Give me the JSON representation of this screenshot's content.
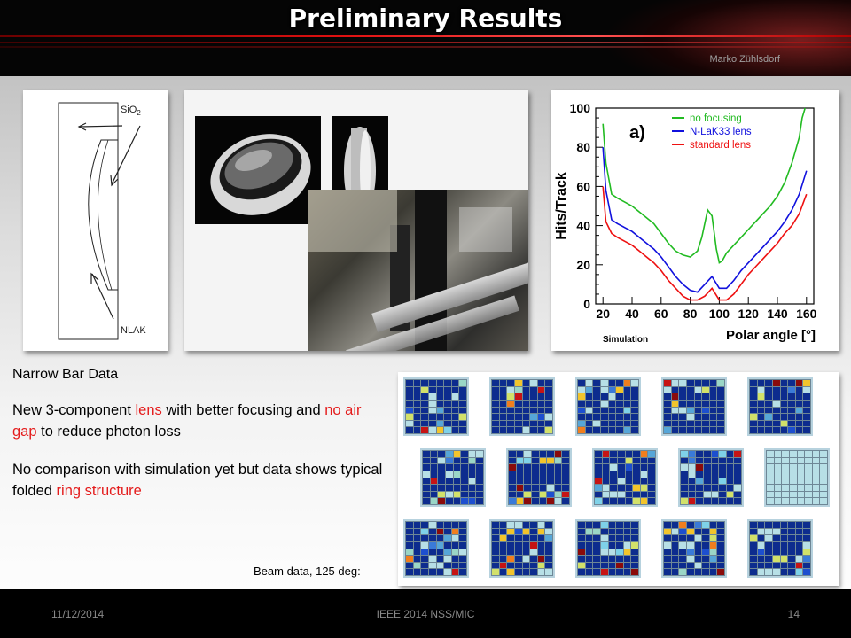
{
  "header": {
    "title": "Preliminary Results",
    "author": "Marko Zühlsdorf"
  },
  "lens_sketch": {
    "label_top": "SiO",
    "label_top_sub": "2",
    "label_bottom": "NLAK"
  },
  "text": {
    "heading": "Narrow Bar Data",
    "p1_before": "New 3-component ",
    "p1_lens": "lens",
    "p1_middle": " with better focusing and ",
    "p1_airgap": "no air gap",
    "p1_after": " to reduce photon loss",
    "p2_before": "No comparison with simulation yet but data shows typical folded ",
    "p2_ring": "ring structure"
  },
  "grid_caption": "Beam data, 125 deg:",
  "footer": {
    "date": "11/12/2014",
    "conference": "IEEE 2014 NSS/MIC",
    "page": "14"
  },
  "colors": {
    "accent_red": "#e41c1c",
    "no_focusing": "#22bb22",
    "nlak_lens": "#1111dd",
    "standard_lens": "#ee1111"
  },
  "chart_data": {
    "type": "line",
    "panel_label": "a)",
    "xlabel": "Polar angle [°]",
    "ylabel": "Hits/Track",
    "corner_label": "Simulation",
    "xlim": [
      15,
      165
    ],
    "ylim": [
      0,
      100
    ],
    "xticks": [
      20,
      40,
      60,
      80,
      100,
      120,
      140,
      160
    ],
    "yticks": [
      0,
      20,
      40,
      60,
      80,
      100
    ],
    "series": [
      {
        "name": "no focusing",
        "color": "#22bb22",
        "x": [
          20,
          22,
          26,
          30,
          35,
          40,
          45,
          50,
          55,
          60,
          65,
          70,
          75,
          80,
          85,
          88,
          92,
          95,
          98,
          100,
          102,
          105,
          110,
          115,
          120,
          125,
          130,
          135,
          140,
          145,
          150,
          155,
          157,
          159
        ],
        "y": [
          92,
          72,
          56,
          54,
          52,
          50,
          47,
          44,
          41,
          36,
          31,
          27,
          25,
          24,
          27,
          34,
          48,
          45,
          28,
          21,
          22,
          26,
          30,
          34,
          38,
          42,
          46,
          50,
          55,
          62,
          72,
          85,
          95,
          100
        ]
      },
      {
        "name": "N-LaK33 lens",
        "color": "#1111dd",
        "x": [
          20,
          22,
          26,
          30,
          35,
          40,
          45,
          50,
          55,
          60,
          65,
          70,
          75,
          80,
          85,
          90,
          95,
          100,
          105,
          110,
          115,
          120,
          125,
          130,
          135,
          140,
          145,
          150,
          155,
          160
        ],
        "y": [
          80,
          58,
          43,
          41,
          39,
          37,
          34,
          31,
          28,
          24,
          19,
          14,
          10,
          7,
          6,
          10,
          14,
          8,
          8,
          12,
          17,
          21,
          25,
          29,
          33,
          37,
          42,
          48,
          56,
          68
        ]
      },
      {
        "name": "standard lens",
        "color": "#ee1111",
        "x": [
          20,
          22,
          26,
          30,
          35,
          40,
          45,
          50,
          55,
          60,
          65,
          70,
          75,
          80,
          85,
          90,
          95,
          100,
          105,
          110,
          115,
          120,
          125,
          130,
          135,
          140,
          145,
          150,
          155,
          160
        ],
        "y": [
          60,
          42,
          36,
          34,
          32,
          30,
          27,
          24,
          21,
          17,
          12,
          8,
          4,
          2,
          2,
          4,
          8,
          2,
          2,
          5,
          10,
          15,
          19,
          23,
          27,
          31,
          36,
          40,
          46,
          56
        ]
      }
    ]
  }
}
